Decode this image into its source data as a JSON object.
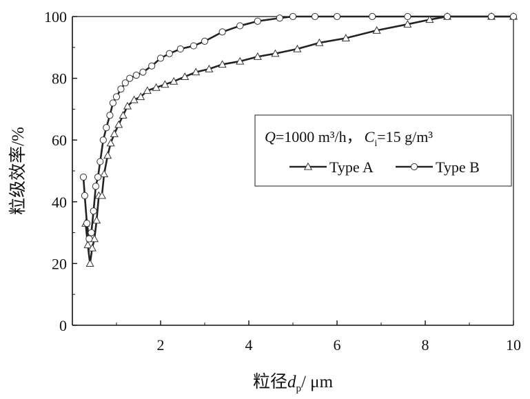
{
  "chart_data": {
    "type": "line",
    "xlabel": {
      "main": "粒径",
      "var": "d",
      "sub": "p",
      "unit": "/ μm"
    },
    "ylabel": "粒级效率/%",
    "xlim": [
      0,
      10
    ],
    "ylim": [
      0,
      100
    ],
    "xticks": [
      "2",
      "4",
      "6",
      "8",
      "10"
    ],
    "yticks": [
      "0",
      "20",
      "40",
      "60",
      "80",
      "100"
    ],
    "grid": false,
    "legend_placement": "center-right",
    "legend": {
      "cond_q_var": "Q",
      "cond_q_rest": "=1000 m³/h，",
      "cond_c_var": "C",
      "cond_c_sub": "i",
      "cond_c_rest": "=15 g/m³"
    },
    "series": [
      {
        "name": "Type A",
        "marker": "triangle",
        "color": "#222222",
        "x": [
          0.3,
          0.35,
          0.4,
          0.45,
          0.5,
          0.55,
          0.6,
          0.67,
          0.72,
          0.8,
          0.87,
          0.95,
          1.05,
          1.15,
          1.25,
          1.4,
          1.55,
          1.7,
          1.9,
          2.1,
          2.3,
          2.55,
          2.8,
          3.1,
          3.4,
          3.8,
          4.2,
          4.6,
          5.1,
          5.6,
          6.2,
          6.9,
          7.6,
          8.1,
          8.5,
          9.5,
          10.0
        ],
        "y": [
          33,
          26,
          20,
          25,
          28,
          34,
          42,
          42,
          49,
          55,
          59,
          62,
          65,
          68,
          71,
          73,
          74,
          76,
          77,
          78,
          79,
          80.5,
          82,
          83,
          84.5,
          85.5,
          87,
          88,
          89.5,
          91.5,
          93,
          95.5,
          97.5,
          99,
          100,
          100,
          100
        ]
      },
      {
        "name": "Type B",
        "marker": "circle",
        "color": "#222222",
        "x": [
          0.25,
          0.28,
          0.33,
          0.38,
          0.43,
          0.48,
          0.53,
          0.58,
          0.63,
          0.7,
          0.77,
          0.85,
          0.92,
          1.0,
          1.1,
          1.2,
          1.3,
          1.45,
          1.6,
          1.8,
          2.0,
          2.2,
          2.45,
          2.75,
          3.0,
          3.4,
          3.8,
          4.2,
          4.7,
          5.0,
          5.5,
          6.0,
          6.8,
          7.6,
          8.5,
          9.5,
          10.0
        ],
        "y": [
          48,
          42,
          33,
          28,
          30,
          37,
          45,
          48,
          53,
          60,
          64,
          68,
          72,
          74,
          76.5,
          78.5,
          80,
          81,
          82,
          84,
          86.5,
          88,
          89.5,
          90.5,
          92,
          95,
          97,
          98.5,
          99.5,
          100,
          100,
          100,
          100,
          100,
          100,
          100,
          100
        ]
      }
    ]
  }
}
